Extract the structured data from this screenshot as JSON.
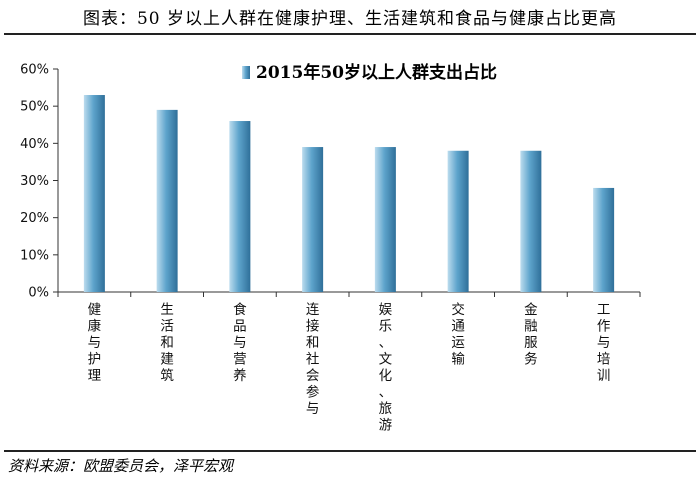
{
  "header": {
    "title": "图表：50 岁以上人群在健康护理、生活建筑和食品与健康占比更高"
  },
  "footer": {
    "source": "资料来源：欧盟委员会，泽平宏观"
  },
  "chart_data": {
    "type": "bar",
    "legend": "2015年50岁以上人群支出占比",
    "categories": [
      "健康与护理",
      "生活和建筑",
      "食品与营养",
      "连接和社会参与",
      "娱乐、文化、旅游",
      "交通运输",
      "金融服务",
      "工作与培训"
    ],
    "series": [
      {
        "name": "2015年50岁以上人群支出占比",
        "values": [
          53,
          49,
          46,
          39,
          39,
          38,
          38,
          28
        ]
      }
    ],
    "ylim": [
      0,
      60
    ],
    "yticks": [
      "0%",
      "10%",
      "20%",
      "30%",
      "40%",
      "50%",
      "60%"
    ],
    "grid": false,
    "legend_position": "top-right",
    "colors": {
      "bar_light": "#bcdcee",
      "bar_mid": "#5ea4cc",
      "bar_dark": "#2f6f99",
      "axis": "#333333"
    }
  }
}
